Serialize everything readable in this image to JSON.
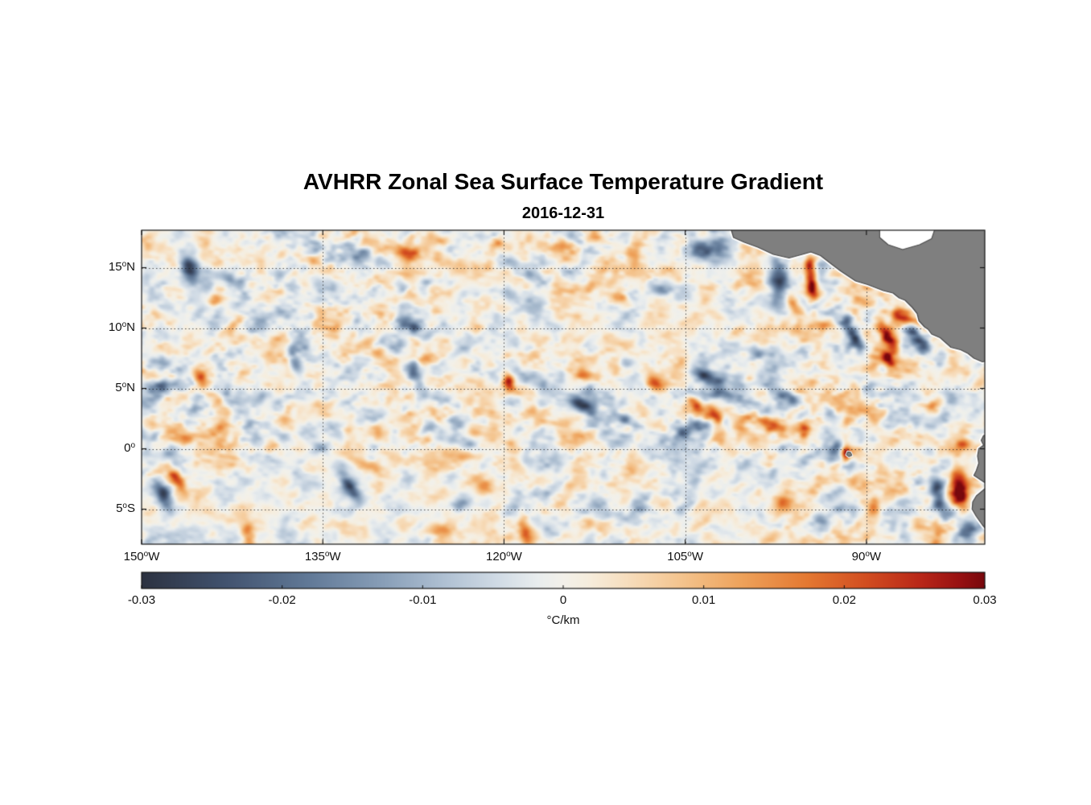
{
  "figure": {
    "background": "#ffffff"
  },
  "chart_data": {
    "type": "heatmap",
    "title": "AVHRR Zonal Sea Surface Temperature Gradient",
    "subtitle": "2016-12-31",
    "x_axis": {
      "range": [
        -150,
        -80.2
      ],
      "ticks": [
        {
          "deg": -150,
          "num": "150",
          "hemi": "W"
        },
        {
          "deg": -135,
          "num": "135",
          "hemi": "W"
        },
        {
          "deg": -120,
          "num": "120",
          "hemi": "W"
        },
        {
          "deg": -105,
          "num": "105",
          "hemi": "W"
        },
        {
          "deg": -90,
          "num": "90",
          "hemi": "W"
        }
      ]
    },
    "y_axis": {
      "range": [
        -7.9,
        18.1
      ],
      "ticks": [
        {
          "deg": 15,
          "num": "15",
          "hemi": "N"
        },
        {
          "deg": 10,
          "num": "10",
          "hemi": "N"
        },
        {
          "deg": 5,
          "num": "5",
          "hemi": "N"
        },
        {
          "deg": 0,
          "num": "0",
          "hemi": ""
        },
        {
          "deg": -5,
          "num": "5",
          "hemi": "S"
        }
      ]
    },
    "grid": {
      "style": "dotted",
      "lats": [
        15,
        10,
        5,
        0,
        -5
      ],
      "lons": [
        -135,
        -120,
        -105,
        -90
      ]
    },
    "colorbar": {
      "label": "°C/km",
      "min": -0.03,
      "max": 0.03,
      "ticks": [
        {
          "v": -0.03,
          "label": "-0.03"
        },
        {
          "v": -0.02,
          "label": "-0.02"
        },
        {
          "v": -0.01,
          "label": "-0.01"
        },
        {
          "v": 0,
          "label": "0"
        },
        {
          "v": 0.01,
          "label": "0.01"
        },
        {
          "v": 0.02,
          "label": "0.02"
        },
        {
          "v": 0.03,
          "label": "0.03"
        }
      ]
    },
    "colormap": [
      [
        -1.0,
        [
          44,
          50,
          65
        ]
      ],
      [
        -0.8,
        [
          66,
          83,
          111
        ]
      ],
      [
        -0.6,
        [
          98,
          122,
          152
        ]
      ],
      [
        -0.42,
        [
          138,
          160,
          185
        ]
      ],
      [
        -0.28,
        [
          176,
          193,
          211
        ]
      ],
      [
        -0.15,
        [
          210,
          220,
          230
        ]
      ],
      [
        -0.06,
        [
          233,
          237,
          238
        ]
      ],
      [
        0.0,
        [
          243,
          241,
          234
        ]
      ],
      [
        0.06,
        [
          246,
          237,
          221
        ]
      ],
      [
        0.15,
        [
          247,
          222,
          190
        ]
      ],
      [
        0.28,
        [
          244,
          196,
          142
        ]
      ],
      [
        0.42,
        [
          238,
          163,
          92
        ]
      ],
      [
        0.58,
        [
          228,
          120,
          49
        ]
      ],
      [
        0.72,
        [
          210,
          77,
          32
        ]
      ],
      [
        0.85,
        [
          184,
          38,
          24
        ]
      ],
      [
        0.94,
        [
          152,
          17,
          18
        ]
      ],
      [
        1.0,
        [
          120,
          8,
          13
        ]
      ]
    ],
    "land": {
      "fill": "#7f7f7f",
      "edge": "#4a4a4a",
      "coast_fringe": "#ffffff",
      "polygons": {
        "central_america": [
          [
            -101.3,
            18.5
          ],
          [
            -101.0,
            17.5
          ],
          [
            -100.1,
            17.1
          ],
          [
            -99.0,
            16.7
          ],
          [
            -97.7,
            16.1
          ],
          [
            -96.4,
            15.8
          ],
          [
            -95.3,
            16.1
          ],
          [
            -94.6,
            16.3
          ],
          [
            -93.8,
            16.0
          ],
          [
            -92.9,
            15.3
          ],
          [
            -92.1,
            14.7
          ],
          [
            -90.9,
            13.9
          ],
          [
            -89.9,
            13.6
          ],
          [
            -88.6,
            13.1
          ],
          [
            -87.8,
            12.9
          ],
          [
            -87.3,
            12.5
          ],
          [
            -86.8,
            12.3
          ],
          [
            -86.2,
            11.7
          ],
          [
            -85.8,
            11.2
          ],
          [
            -85.65,
            10.6
          ],
          [
            -85.2,
            10.1
          ],
          [
            -84.9,
            9.9
          ],
          [
            -84.6,
            9.5
          ],
          [
            -83.9,
            9.2
          ],
          [
            -83.0,
            8.4
          ],
          [
            -82.2,
            8.2
          ],
          [
            -81.6,
            7.9
          ],
          [
            -81.1,
            7.5
          ],
          [
            -80.4,
            7.2
          ],
          [
            -79.5,
            7.4
          ],
          [
            -79.5,
            18.5
          ]
        ],
        "south_america": [
          [
            -79.5,
            1.3
          ],
          [
            -80.3,
            1.1
          ],
          [
            -80.5,
            0.7
          ],
          [
            -80.3,
            0.3
          ],
          [
            -80.7,
            0.0
          ],
          [
            -80.8,
            -0.6
          ],
          [
            -80.7,
            -1.2
          ],
          [
            -80.9,
            -1.8
          ],
          [
            -81.1,
            -2.2
          ],
          [
            -80.5,
            -2.6
          ],
          [
            -79.9,
            -3.0
          ],
          [
            -80.3,
            -3.4
          ],
          [
            -80.9,
            -3.9
          ],
          [
            -81.2,
            -4.4
          ],
          [
            -81.25,
            -5.0
          ],
          [
            -80.9,
            -5.6
          ],
          [
            -80.4,
            -6.3
          ],
          [
            -79.8,
            -7.0
          ],
          [
            -79.4,
            -7.8
          ],
          [
            -79.2,
            -8.5
          ],
          [
            -78.5,
            -8.5
          ],
          [
            -78.5,
            1.3
          ]
        ],
        "galapagos": [
          [
            -91.55,
            -0.25
          ],
          [
            -91.3,
            -0.3
          ],
          [
            -91.2,
            -0.55
          ],
          [
            -91.45,
            -0.65
          ],
          [
            -91.65,
            -0.5
          ]
        ]
      },
      "water_notches": {
        "caribbean": [
          [
            -88.9,
            18.6
          ],
          [
            -84.2,
            18.6
          ],
          [
            -84.6,
            17.4
          ],
          [
            -85.6,
            16.9
          ],
          [
            -87.0,
            16.5
          ],
          [
            -88.2,
            16.9
          ],
          [
            -88.9,
            17.5
          ]
        ]
      }
    },
    "noise": {
      "octaves": [
        [
          0.55,
          0.85,
          25,
          0.0075,
          11
        ],
        [
          1.05,
          1.6,
          -35,
          0.0052,
          23
        ],
        [
          2.1,
          3.1,
          10,
          0.003,
          37
        ]
      ]
    },
    "features": [
      [
        -146.0,
        15.0,
        -0.024,
        0.7,
        1.2,
        20
      ],
      [
        -142.6,
        13.9,
        -0.018,
        1.3,
        0.55,
        -35
      ],
      [
        -144.1,
        12.2,
        0.012,
        0.6,
        0.45,
        0
      ],
      [
        -145.0,
        5.7,
        0.022,
        0.55,
        1.0,
        15
      ],
      [
        -144.6,
        3.7,
        -0.015,
        0.8,
        0.6,
        -20
      ],
      [
        -148.2,
        5.2,
        -0.018,
        1.0,
        0.6,
        0
      ],
      [
        -147.1,
        -2.5,
        0.022,
        0.5,
        1.3,
        30
      ],
      [
        -148.2,
        -3.8,
        -0.022,
        0.6,
        1.2,
        25
      ],
      [
        -141.2,
        -7.0,
        0.015,
        0.55,
        0.9,
        10
      ],
      [
        -137.3,
        7.1,
        -0.02,
        0.5,
        1.1,
        20
      ],
      [
        -128.1,
        16.3,
        0.018,
        1.2,
        0.55,
        -30
      ],
      [
        -125.4,
        17.3,
        0.014,
        0.8,
        0.45,
        -20
      ],
      [
        -132.1,
        15.9,
        -0.012,
        0.8,
        0.6,
        0
      ],
      [
        -127.6,
        10.1,
        -0.015,
        1.1,
        0.5,
        -40
      ],
      [
        -126.3,
        7.4,
        0.014,
        0.7,
        0.5,
        20
      ],
      [
        -127.3,
        6.3,
        -0.016,
        0.5,
        1.1,
        15
      ],
      [
        -132.8,
        -3.1,
        -0.024,
        0.55,
        1.4,
        35
      ],
      [
        -131.4,
        -1.3,
        0.016,
        1.2,
        0.5,
        -20
      ],
      [
        -123.6,
        -0.5,
        0.012,
        1.5,
        0.5,
        -10
      ],
      [
        -121.6,
        -3.1,
        0.014,
        0.7,
        0.6,
        0
      ],
      [
        -123.8,
        -4.5,
        -0.012,
        0.8,
        0.6,
        10
      ],
      [
        -118.3,
        -6.7,
        0.018,
        0.5,
        1.1,
        10
      ],
      [
        -119.6,
        5.5,
        0.024,
        0.45,
        0.8,
        20
      ],
      [
        -113.1,
        6.1,
        0.016,
        1.5,
        0.5,
        -15
      ],
      [
        -113.8,
        3.7,
        -0.026,
        1.6,
        0.5,
        -25
      ],
      [
        -110.0,
        2.4,
        -0.02,
        1.3,
        0.5,
        -25
      ],
      [
        -107.5,
        5.4,
        0.02,
        0.9,
        0.55,
        -20
      ],
      [
        -105.5,
        1.6,
        -0.018,
        0.9,
        0.55,
        -30
      ],
      [
        -104.1,
        3.5,
        0.022,
        0.5,
        1.2,
        35
      ],
      [
        -102.5,
        2.7,
        0.022,
        0.5,
        1.2,
        35
      ],
      [
        -103.0,
        16.7,
        -0.024,
        1.5,
        1.0,
        0
      ],
      [
        -114.8,
        17.0,
        0.014,
        0.9,
        0.5,
        -30
      ],
      [
        -117.4,
        14.2,
        -0.014,
        1.3,
        0.5,
        -15
      ],
      [
        -110.3,
        12.5,
        0.012,
        0.9,
        0.45,
        -20
      ],
      [
        -107.1,
        13.2,
        -0.012,
        1.0,
        0.5,
        -10
      ],
      [
        -103.1,
        5.9,
        -0.02,
        1.2,
        0.5,
        -20
      ],
      [
        -101.8,
        4.5,
        -0.014,
        0.9,
        0.5,
        -25
      ],
      [
        -90.5,
        12.4,
        0.02,
        1.7,
        0.55,
        -25
      ],
      [
        -91.0,
        9.4,
        -0.026,
        0.55,
        1.5,
        30
      ],
      [
        -88.2,
        9.2,
        0.03,
        0.55,
        1.4,
        30
      ],
      [
        -87.0,
        10.9,
        0.026,
        0.9,
        0.55,
        -20
      ],
      [
        -97.3,
        13.7,
        -0.028,
        0.8,
        1.6,
        10
      ],
      [
        -94.6,
        14.3,
        0.034,
        0.5,
        1.9,
        5
      ],
      [
        -96.1,
        12.1,
        0.016,
        0.5,
        0.9,
        30
      ],
      [
        -93.4,
        10.3,
        0.013,
        0.8,
        0.5,
        20
      ],
      [
        -99.1,
        7.9,
        -0.014,
        1.1,
        0.5,
        -30
      ],
      [
        -103.8,
        2.0,
        -0.013,
        0.9,
        0.5,
        -20
      ],
      [
        -98.1,
        2.2,
        0.02,
        1.4,
        0.5,
        -20
      ],
      [
        -95.1,
        1.5,
        0.024,
        0.5,
        0.8,
        0
      ],
      [
        -96.5,
        4.4,
        -0.022,
        1.2,
        0.5,
        -25
      ],
      [
        -93.1,
        3.1,
        -0.014,
        0.8,
        0.55,
        -20
      ],
      [
        -91.7,
        -0.5,
        0.028,
        0.4,
        0.7,
        0
      ],
      [
        -92.6,
        -0.2,
        -0.012,
        0.6,
        0.45,
        0
      ],
      [
        -82.2,
        -3.5,
        0.032,
        0.75,
        1.8,
        15
      ],
      [
        -84.0,
        -3.8,
        -0.028,
        0.65,
        1.8,
        10
      ],
      [
        -81.5,
        -6.6,
        -0.026,
        0.8,
        1.2,
        0
      ],
      [
        -85.2,
        -0.1,
        -0.014,
        0.8,
        0.55,
        0
      ],
      [
        -82.0,
        0.3,
        0.016,
        0.6,
        0.5,
        0
      ],
      [
        -83.8,
        7.2,
        -0.016,
        0.7,
        0.9,
        0
      ],
      [
        -82.8,
        4.5,
        -0.014,
        0.7,
        0.8,
        0
      ],
      [
        -84.5,
        3.5,
        0.012,
        0.6,
        0.5,
        20
      ],
      [
        -88.2,
        7.4,
        0.022,
        0.5,
        1.1,
        30
      ],
      [
        -85.8,
        9.2,
        -0.022,
        0.55,
        1.4,
        30
      ],
      [
        -120.5,
        17.0,
        0.013,
        0.8,
        0.5,
        -25
      ],
      [
        -134.8,
        0.1,
        -0.012,
        0.9,
        0.5,
        0
      ],
      [
        -125.4,
        -6.8,
        0.014,
        0.9,
        0.5,
        15
      ],
      [
        -113.1,
        -6.1,
        0.013,
        0.9,
        0.5,
        -10
      ],
      [
        -109.1,
        -4.8,
        -0.013,
        0.9,
        0.55,
        -15
      ],
      [
        -96.8,
        -4.5,
        0.016,
        0.6,
        0.6,
        0
      ],
      [
        -93.6,
        -5.8,
        -0.014,
        0.8,
        0.6,
        10
      ],
      [
        -89.5,
        -4.8,
        0.014,
        0.6,
        0.6,
        0
      ]
    ]
  }
}
